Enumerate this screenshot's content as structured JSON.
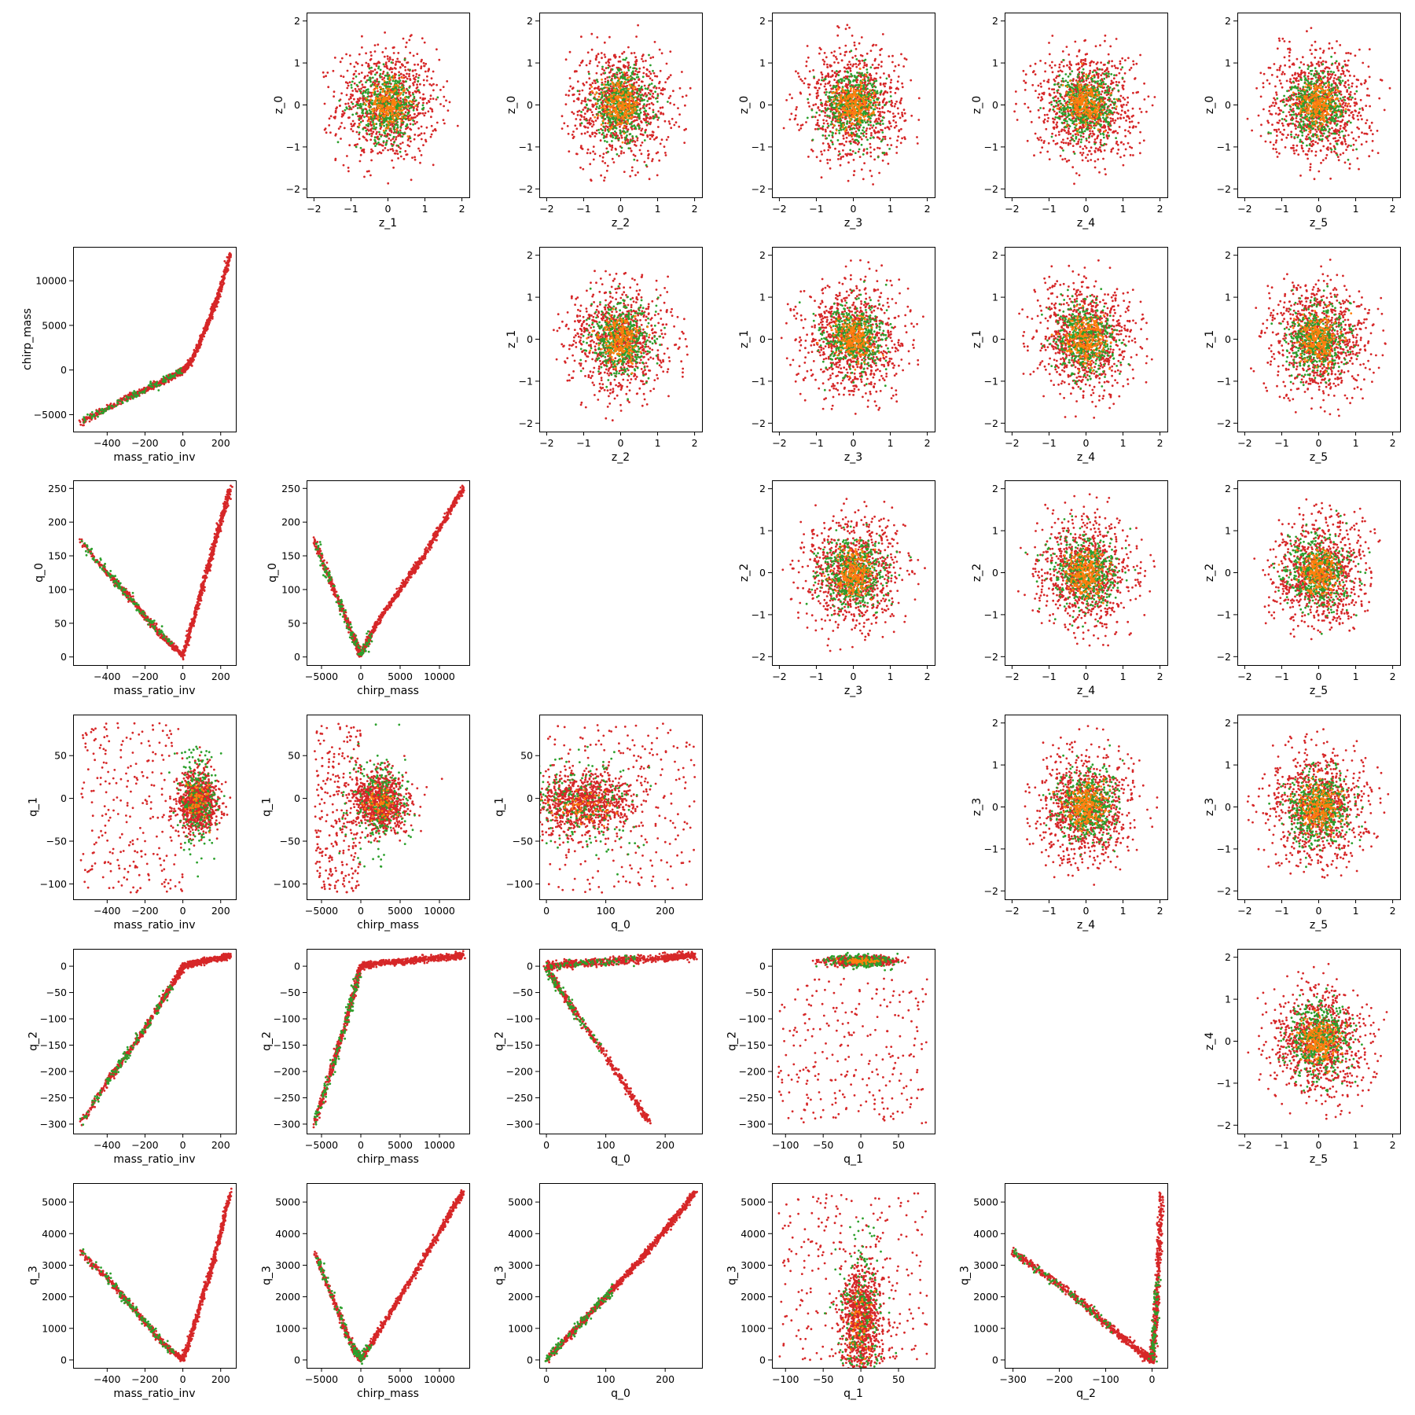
{
  "figure": {
    "point_colors": [
      "#d62728",
      "#2ca02c",
      "#ff7f0e"
    ]
  },
  "chart_data": [
    {
      "type": "scatter",
      "xlabel": "z_1",
      "ylabel": "z_0",
      "xlim": [
        -2.2,
        2.2
      ],
      "ylim": [
        -2.2,
        2.2
      ],
      "xticks": [
        -2,
        -1,
        0,
        1,
        2
      ],
      "yticks": [
        -2,
        -1,
        0,
        1,
        2
      ],
      "pattern": "gauss"
    },
    {
      "type": "scatter",
      "xlabel": "z_2",
      "ylabel": "z_0",
      "xlim": [
        -2.2,
        2.2
      ],
      "ylim": [
        -2.2,
        2.2
      ],
      "xticks": [
        -2,
        -1,
        0,
        1,
        2
      ],
      "yticks": [
        -2,
        -1,
        0,
        1,
        2
      ],
      "pattern": "gauss"
    },
    {
      "type": "scatter",
      "xlabel": "z_3",
      "ylabel": "z_0",
      "xlim": [
        -2.2,
        2.2
      ],
      "ylim": [
        -2.2,
        2.2
      ],
      "xticks": [
        -2,
        -1,
        0,
        1,
        2
      ],
      "yticks": [
        -2,
        -1,
        0,
        1,
        2
      ],
      "pattern": "gauss"
    },
    {
      "type": "scatter",
      "xlabel": "z_4",
      "ylabel": "z_0",
      "xlim": [
        -2.2,
        2.2
      ],
      "ylim": [
        -2.2,
        2.2
      ],
      "xticks": [
        -2,
        -1,
        0,
        1,
        2
      ],
      "yticks": [
        -2,
        -1,
        0,
        1,
        2
      ],
      "pattern": "gauss"
    },
    {
      "type": "scatter",
      "xlabel": "z_5",
      "ylabel": "z_0",
      "xlim": [
        -2.2,
        2.2
      ],
      "ylim": [
        -2.2,
        2.2
      ],
      "xticks": [
        -2,
        -1,
        0,
        1,
        2
      ],
      "yticks": [
        -2,
        -1,
        0,
        1,
        2
      ],
      "pattern": "gauss"
    },
    {
      "type": "scatter",
      "xlabel": "mass_ratio_inv",
      "ylabel": "chirp_mass",
      "xlim": [
        -580,
        280
      ],
      "ylim": [
        -6900,
        13800
      ],
      "xticks": [
        -400,
        -200,
        0,
        200
      ],
      "yticks": [
        -5000,
        0,
        5000,
        10000
      ],
      "pattern": "curve",
      "points": [
        [
          -540,
          -5900
        ],
        [
          -420,
          -4500
        ],
        [
          -300,
          -3200
        ],
        [
          -200,
          -2200
        ],
        [
          -100,
          -1200
        ],
        [
          -20,
          -300
        ],
        [
          0,
          0
        ],
        [
          40,
          900
        ],
        [
          80,
          2600
        ],
        [
          120,
          4600
        ],
        [
          160,
          6800
        ],
        [
          200,
          9200
        ],
        [
          250,
          13000
        ]
      ]
    },
    {
      "type": "scatter",
      "xlabel": "z_2",
      "ylabel": "z_1",
      "xlim": [
        -2.2,
        2.2
      ],
      "ylim": [
        -2.2,
        2.2
      ],
      "xticks": [
        -2,
        -1,
        0,
        1,
        2
      ],
      "yticks": [
        -2,
        -1,
        0,
        1,
        2
      ],
      "pattern": "gauss"
    },
    {
      "type": "scatter",
      "xlabel": "z_3",
      "ylabel": "z_1",
      "xlim": [
        -2.2,
        2.2
      ],
      "ylim": [
        -2.2,
        2.2
      ],
      "xticks": [
        -2,
        -1,
        0,
        1,
        2
      ],
      "yticks": [
        -2,
        -1,
        0,
        1,
        2
      ],
      "pattern": "gauss"
    },
    {
      "type": "scatter",
      "xlabel": "z_4",
      "ylabel": "z_1",
      "xlim": [
        -2.2,
        2.2
      ],
      "ylim": [
        -2.2,
        2.2
      ],
      "xticks": [
        -2,
        -1,
        0,
        1,
        2
      ],
      "yticks": [
        -2,
        -1,
        0,
        1,
        2
      ],
      "pattern": "gauss"
    },
    {
      "type": "scatter",
      "xlabel": "z_5",
      "ylabel": "z_1",
      "xlim": [
        -2.2,
        2.2
      ],
      "ylim": [
        -2.2,
        2.2
      ],
      "xticks": [
        -2,
        -1,
        0,
        1,
        2
      ],
      "yticks": [
        -2,
        -1,
        0,
        1,
        2
      ],
      "pattern": "gauss"
    },
    {
      "type": "scatter",
      "xlabel": "mass_ratio_inv",
      "ylabel": "q_0",
      "xlim": [
        -580,
        280
      ],
      "ylim": [
        -12,
        262
      ],
      "xticks": [
        -400,
        -200,
        0,
        200
      ],
      "yticks": [
        0,
        50,
        100,
        150,
        200,
        250
      ],
      "pattern": "curve",
      "points": [
        [
          -540,
          172
        ],
        [
          -400,
          125
        ],
        [
          -300,
          95
        ],
        [
          -200,
          60
        ],
        [
          -100,
          28
        ],
        [
          0,
          2
        ],
        [
          50,
          50
        ],
        [
          100,
          100
        ],
        [
          150,
          150
        ],
        [
          200,
          200
        ],
        [
          250,
          250
        ]
      ]
    },
    {
      "type": "scatter",
      "xlabel": "chirp_mass",
      "ylabel": "q_0",
      "xlim": [
        -6900,
        13800
      ],
      "ylim": [
        -12,
        262
      ],
      "xticks": [
        -5000,
        0,
        5000,
        10000
      ],
      "yticks": [
        0,
        50,
        100,
        150,
        200,
        250
      ],
      "pattern": "curve",
      "points": [
        [
          -5900,
          172
        ],
        [
          -3000,
          88
        ],
        [
          -1000,
          30
        ],
        [
          0,
          2
        ],
        [
          2000,
          50
        ],
        [
          5000,
          100
        ],
        [
          8000,
          150
        ],
        [
          11000,
          210
        ],
        [
          13000,
          250
        ]
      ]
    },
    {
      "type": "scatter",
      "xlabel": "z_3",
      "ylabel": "z_2",
      "xlim": [
        -2.2,
        2.2
      ],
      "ylim": [
        -2.2,
        2.2
      ],
      "xticks": [
        -2,
        -1,
        0,
        1,
        2
      ],
      "yticks": [
        -2,
        -1,
        0,
        1,
        2
      ],
      "pattern": "gauss"
    },
    {
      "type": "scatter",
      "xlabel": "z_4",
      "ylabel": "z_2",
      "xlim": [
        -2.2,
        2.2
      ],
      "ylim": [
        -2.2,
        2.2
      ],
      "xticks": [
        -2,
        -1,
        0,
        1,
        2
      ],
      "yticks": [
        -2,
        -1,
        0,
        1,
        2
      ],
      "pattern": "gauss"
    },
    {
      "type": "scatter",
      "xlabel": "z_5",
      "ylabel": "z_2",
      "xlim": [
        -2.2,
        2.2
      ],
      "ylim": [
        -2.2,
        2.2
      ],
      "xticks": [
        -2,
        -1,
        0,
        1,
        2
      ],
      "yticks": [
        -2,
        -1,
        0,
        1,
        2
      ],
      "pattern": "gauss"
    },
    {
      "type": "scatter",
      "xlabel": "mass_ratio_inv",
      "ylabel": "q_1",
      "xlim": [
        -580,
        280
      ],
      "ylim": [
        -118,
        98
      ],
      "xticks": [
        -400,
        -200,
        0,
        200
      ],
      "yticks": [
        -100,
        -50,
        0,
        50
      ],
      "pattern": "blob",
      "cx": 80,
      "cy": -5,
      "sx": 50,
      "sy": 18,
      "spread": [
        -540,
        0,
        -110,
        88
      ]
    },
    {
      "type": "scatter",
      "xlabel": "chirp_mass",
      "ylabel": "q_1",
      "xlim": [
        -6900,
        13800
      ],
      "ylim": [
        -118,
        98
      ],
      "xticks": [
        -5000,
        0,
        5000,
        10000
      ],
      "yticks": [
        -100,
        -50,
        0,
        50
      ],
      "pattern": "blob",
      "cx": 2500,
      "cy": -5,
      "sx": 1800,
      "sy": 18,
      "spread": [
        -5900,
        0,
        -110,
        88
      ]
    },
    {
      "type": "scatter",
      "xlabel": "q_0",
      "ylabel": "q_1",
      "xlim": [
        -12,
        262
      ],
      "ylim": [
        -118,
        98
      ],
      "xticks": [
        0,
        100,
        200
      ],
      "yticks": [
        -100,
        -50,
        0,
        50
      ],
      "pattern": "blob",
      "cx": 60,
      "cy": -5,
      "sx": 45,
      "sy": 18,
      "spread": [
        0,
        250,
        -110,
        88
      ]
    },
    {
      "type": "scatter",
      "xlabel": "z_4",
      "ylabel": "z_3",
      "xlim": [
        -2.2,
        2.2
      ],
      "ylim": [
        -2.2,
        2.2
      ],
      "xticks": [
        -2,
        -1,
        0,
        1,
        2
      ],
      "yticks": [
        -2,
        -1,
        0,
        1,
        2
      ],
      "pattern": "gauss"
    },
    {
      "type": "scatter",
      "xlabel": "z_5",
      "ylabel": "z_3",
      "xlim": [
        -2.2,
        2.2
      ],
      "ylim": [
        -2.2,
        2.2
      ],
      "xticks": [
        -2,
        -1,
        0,
        1,
        2
      ],
      "yticks": [
        -2,
        -1,
        0,
        1,
        2
      ],
      "pattern": "gauss"
    },
    {
      "type": "scatter",
      "xlabel": "mass_ratio_inv",
      "ylabel": "q_2",
      "xlim": [
        -580,
        280
      ],
      "ylim": [
        -318,
        33
      ],
      "xticks": [
        -400,
        -200,
        0,
        200
      ],
      "yticks": [
        -300,
        -250,
        -200,
        -150,
        -100,
        -50,
        0
      ],
      "pattern": "curve",
      "points": [
        [
          -540,
          -300
        ],
        [
          -400,
          -220
        ],
        [
          -300,
          -170
        ],
        [
          -200,
          -120
        ],
        [
          -100,
          -60
        ],
        [
          -20,
          -15
        ],
        [
          0,
          0
        ],
        [
          50,
          5
        ],
        [
          120,
          10
        ],
        [
          200,
          16
        ],
        [
          250,
          20
        ]
      ]
    },
    {
      "type": "scatter",
      "xlabel": "chirp_mass",
      "ylabel": "q_2",
      "xlim": [
        -6900,
        13800
      ],
      "ylim": [
        -318,
        33
      ],
      "xticks": [
        -5000,
        0,
        5000,
        10000
      ],
      "yticks": [
        -300,
        -250,
        -200,
        -150,
        -100,
        -50,
        0
      ],
      "pattern": "curve",
      "points": [
        [
          -5900,
          -300
        ],
        [
          -4000,
          -210
        ],
        [
          -2000,
          -110
        ],
        [
          -800,
          -45
        ],
        [
          0,
          0
        ],
        [
          2000,
          5
        ],
        [
          6000,
          10
        ],
        [
          10000,
          16
        ],
        [
          13000,
          20
        ]
      ]
    },
    {
      "type": "scatter",
      "xlabel": "q_0",
      "ylabel": "q_2",
      "xlim": [
        -12,
        262
      ],
      "ylim": [
        -318,
        33
      ],
      "xticks": [
        0,
        100,
        200
      ],
      "yticks": [
        -300,
        -250,
        -200,
        -150,
        -100,
        -50,
        0
      ],
      "pattern": "branches",
      "branches": [
        [
          [
            0,
            0
          ],
          [
            50,
            5
          ],
          [
            120,
            10
          ],
          [
            200,
            16
          ],
          [
            250,
            20
          ]
        ],
        [
          [
            0,
            0
          ],
          [
            20,
            -40
          ],
          [
            50,
            -90
          ],
          [
            100,
            -170
          ],
          [
            140,
            -240
          ],
          [
            175,
            -300
          ]
        ]
      ]
    },
    {
      "type": "scatter",
      "xlabel": "q_1",
      "ylabel": "q_2",
      "xlim": [
        -118,
        98
      ],
      "ylim": [
        -318,
        33
      ],
      "xticks": [
        -100,
        -50,
        0,
        50
      ],
      "yticks": [
        -300,
        -250,
        -200,
        -150,
        -100,
        -50,
        0
      ],
      "pattern": "band",
      "cx": 0,
      "cy": 10,
      "sx": 20,
      "sy": 4,
      "spread": [
        -110,
        88,
        -300,
        -20
      ]
    },
    {
      "type": "scatter",
      "xlabel": "z_5",
      "ylabel": "z_4",
      "xlim": [
        -2.2,
        2.2
      ],
      "ylim": [
        -2.2,
        2.2
      ],
      "xticks": [
        -2,
        -1,
        0,
        1,
        2
      ],
      "yticks": [
        -2,
        -1,
        0,
        1,
        2
      ],
      "pattern": "gauss"
    },
    {
      "type": "scatter",
      "xlabel": "mass_ratio_inv",
      "ylabel": "q_3",
      "xlim": [
        -580,
        280
      ],
      "ylim": [
        -250,
        5600
      ],
      "xticks": [
        -400,
        -200,
        0,
        200
      ],
      "yticks": [
        0,
        1000,
        2000,
        3000,
        4000,
        5000
      ],
      "pattern": "curve",
      "points": [
        [
          -540,
          3400
        ],
        [
          -400,
          2600
        ],
        [
          -300,
          1900
        ],
        [
          -200,
          1200
        ],
        [
          -100,
          500
        ],
        [
          0,
          0
        ],
        [
          50,
          900
        ],
        [
          100,
          1900
        ],
        [
          150,
          2900
        ],
        [
          200,
          4000
        ],
        [
          250,
          5300
        ]
      ]
    },
    {
      "type": "scatter",
      "xlabel": "chirp_mass",
      "ylabel": "q_3",
      "xlim": [
        -6900,
        13800
      ],
      "ylim": [
        -250,
        5600
      ],
      "xticks": [
        -5000,
        0,
        5000,
        10000
      ],
      "yticks": [
        0,
        1000,
        2000,
        3000,
        4000,
        5000
      ],
      "pattern": "curve",
      "points": [
        [
          -5900,
          3400
        ],
        [
          -3000,
          1600
        ],
        [
          -1000,
          400
        ],
        [
          0,
          0
        ],
        [
          2000,
          800
        ],
        [
          5000,
          2000
        ],
        [
          8000,
          3200
        ],
        [
          11000,
          4500
        ],
        [
          13000,
          5300
        ]
      ]
    },
    {
      "type": "scatter",
      "xlabel": "q_0",
      "ylabel": "q_3",
      "xlim": [
        -12,
        262
      ],
      "ylim": [
        -250,
        5600
      ],
      "xticks": [
        0,
        100,
        200
      ],
      "yticks": [
        0,
        1000,
        2000,
        3000,
        4000,
        5000
      ],
      "pattern": "curve",
      "points": [
        [
          0,
          0
        ],
        [
          50,
          1000
        ],
        [
          100,
          2000
        ],
        [
          150,
          3000
        ],
        [
          200,
          4100
        ],
        [
          250,
          5300
        ]
      ]
    },
    {
      "type": "scatter",
      "xlabel": "q_1",
      "ylabel": "q_3",
      "xlim": [
        -118,
        98
      ],
      "ylim": [
        -250,
        5600
      ],
      "xticks": [
        -100,
        -50,
        0,
        50
      ],
      "yticks": [
        0,
        1000,
        2000,
        3000,
        4000,
        5000
      ],
      "pattern": "blob",
      "cx": 0,
      "cy": 1200,
      "sx": 14,
      "sy": 900,
      "spread": [
        -110,
        88,
        0,
        5300
      ]
    },
    {
      "type": "scatter",
      "xlabel": "q_2",
      "ylabel": "q_3",
      "xlim": [
        -318,
        33
      ],
      "ylim": [
        -250,
        5600
      ],
      "xticks": [
        -300,
        -200,
        -100,
        0
      ],
      "yticks": [
        0,
        1000,
        2000,
        3000,
        4000,
        5000
      ],
      "pattern": "branches",
      "branches": [
        [
          [
            -300,
            3400
          ],
          [
            -220,
            2600
          ],
          [
            -150,
            1800
          ],
          [
            -80,
            900
          ],
          [
            -20,
            200
          ],
          [
            0,
            0
          ]
        ],
        [
          [
            0,
            0
          ],
          [
            5,
            800
          ],
          [
            10,
            2000
          ],
          [
            15,
            3500
          ],
          [
            20,
            5300
          ]
        ]
      ]
    }
  ]
}
